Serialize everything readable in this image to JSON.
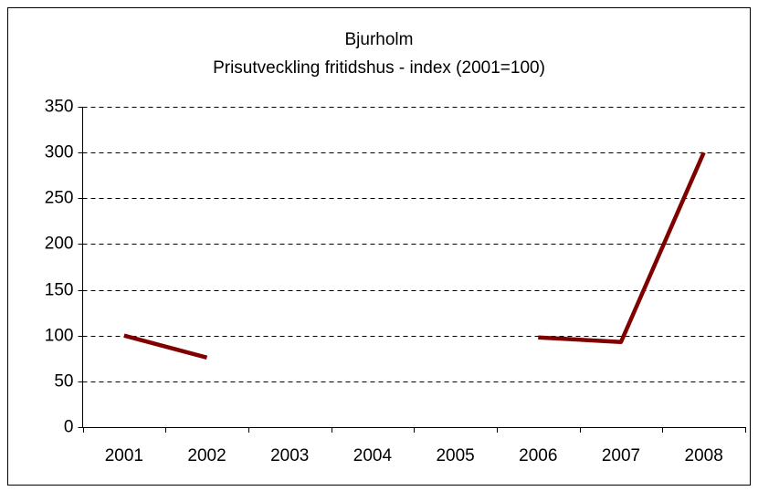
{
  "chart_data": {
    "type": "line",
    "title": "Bjurholm",
    "subtitle": "Prisutveckling fritidshus - index (2001=100)",
    "categories": [
      "2001",
      "2002",
      "2003",
      "2004",
      "2005",
      "2006",
      "2007",
      "2008"
    ],
    "values": [
      100,
      76,
      null,
      null,
      null,
      98,
      93,
      300
    ],
    "color": "#800000",
    "ylim": [
      0,
      350
    ],
    "yticks": [
      0,
      50,
      100,
      150,
      200,
      250,
      300,
      350
    ],
    "grid": true
  }
}
